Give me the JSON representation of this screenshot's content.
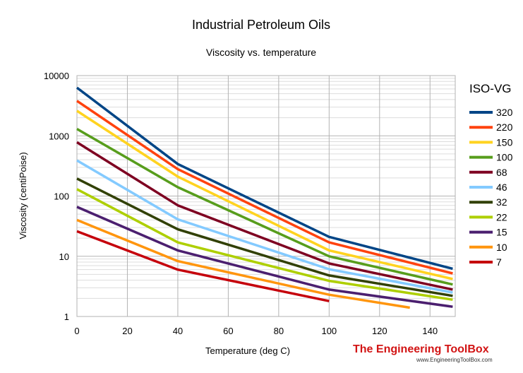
{
  "chart_data": {
    "type": "line",
    "title": "Industrial Petroleum Oils",
    "subtitle": "Viscosity vs. temperature",
    "xlabel": "Temperature (deg C)",
    "ylabel": "Viscosity (centiPoise)",
    "xlim": [
      0,
      150
    ],
    "ylim": [
      1,
      10000
    ],
    "yscale": "log",
    "x_ticks": [
      0,
      20,
      40,
      60,
      80,
      100,
      120,
      140
    ],
    "x_tick_labels": [
      "0",
      "20",
      "40",
      "60",
      "80",
      "100",
      "120",
      "140"
    ],
    "y_ticks": [
      1,
      10,
      100,
      1000,
      10000
    ],
    "y_tick_labels": [
      "1",
      "10",
      "100",
      "1000",
      "10000"
    ],
    "grid": true,
    "legend_title": "ISO-VG",
    "legend_position": "right",
    "series": [
      {
        "name": "320",
        "color": "#004586",
        "x": [
          0,
          40,
          100,
          149
        ],
        "values": [
          6300,
          340,
          21,
          6.2
        ]
      },
      {
        "name": "220",
        "color": "#ff420e",
        "x": [
          0,
          40,
          100,
          149
        ],
        "values": [
          3800,
          280,
          17,
          5.2
        ]
      },
      {
        "name": "150",
        "color": "#ffd320",
        "x": [
          0,
          40,
          100,
          149
        ],
        "values": [
          2600,
          210,
          12.5,
          4.2
        ]
      },
      {
        "name": "100",
        "color": "#579d1c",
        "x": [
          0,
          40,
          100,
          149
        ],
        "values": [
          1300,
          140,
          10,
          3.4
        ]
      },
      {
        "name": "68",
        "color": "#7e0021",
        "x": [
          0,
          40,
          100,
          149
        ],
        "values": [
          780,
          70,
          7.6,
          2.8
        ]
      },
      {
        "name": "46",
        "color": "#83caff",
        "x": [
          0,
          40,
          100,
          149
        ],
        "values": [
          390,
          41,
          6.1,
          2.5
        ]
      },
      {
        "name": "32",
        "color": "#314004",
        "x": [
          0,
          40,
          100,
          149
        ],
        "values": [
          195,
          28,
          4.8,
          2.2
        ]
      },
      {
        "name": "22",
        "color": "#aecf00",
        "x": [
          0,
          40,
          100,
          149
        ],
        "values": [
          130,
          17,
          3.9,
          1.9
        ]
      },
      {
        "name": "15",
        "color": "#4b1f6f",
        "x": [
          0,
          40,
          100,
          149
        ],
        "values": [
          66,
          12.5,
          2.8,
          1.45
        ]
      },
      {
        "name": "10",
        "color": "#ff950e",
        "x": [
          0,
          40,
          100,
          132
        ],
        "values": [
          40,
          8.3,
          2.3,
          1.4
        ]
      },
      {
        "name": "7",
        "color": "#c5000b",
        "x": [
          0,
          40,
          100
        ],
        "values": [
          26,
          6,
          1.8
        ]
      }
    ]
  },
  "branding": {
    "name": "The Engineering ToolBox",
    "url": "www.EngineeringToolBox.com"
  }
}
